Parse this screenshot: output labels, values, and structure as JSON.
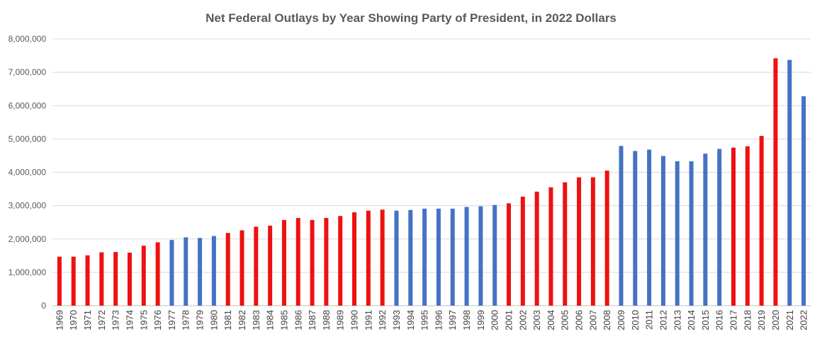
{
  "chart_data": {
    "type": "bar",
    "title": "Net Federal Outlays by Year Showing Party of President, in 2022 Dollars",
    "xlabel": "",
    "ylabel": "",
    "ylim": [
      0,
      8000000
    ],
    "yticks": [
      0,
      1000000,
      2000000,
      3000000,
      4000000,
      5000000,
      6000000,
      7000000,
      8000000
    ],
    "ytick_labels": [
      "0",
      "1,000,000",
      "2,000,000",
      "3,000,000",
      "4,000,000",
      "5,000,000",
      "6,000,000",
      "7,000,000",
      "8,000,000"
    ],
    "grid": true,
    "legend": "none",
    "colors": {
      "R": "#ee1111",
      "D": "#4472c4",
      "grid": "#d9d9d9",
      "axis": "#bfbfbf"
    },
    "categories": [
      "1969",
      "1970",
      "1971",
      "1972",
      "1973",
      "1974",
      "1975",
      "1976",
      "1977",
      "1978",
      "1979",
      "1980",
      "1981",
      "1982",
      "1983",
      "1984",
      "1985",
      "1986",
      "1987",
      "1988",
      "1989",
      "1990",
      "1991",
      "1992",
      "1993",
      "1994",
      "1995",
      "1996",
      "1997",
      "1998",
      "1999",
      "2000",
      "2001",
      "2002",
      "2003",
      "2004",
      "2005",
      "2006",
      "2007",
      "2008",
      "2009",
      "2010",
      "2011",
      "2012",
      "2013",
      "2014",
      "2015",
      "2016",
      "2017",
      "2018",
      "2019",
      "2020",
      "2021",
      "2022"
    ],
    "values": [
      1470000,
      1470000,
      1510000,
      1600000,
      1610000,
      1590000,
      1800000,
      1900000,
      1970000,
      2050000,
      2030000,
      2090000,
      2180000,
      2260000,
      2370000,
      2400000,
      2570000,
      2630000,
      2570000,
      2630000,
      2690000,
      2800000,
      2850000,
      2880000,
      2850000,
      2870000,
      2910000,
      2910000,
      2910000,
      2960000,
      2980000,
      3020000,
      3070000,
      3270000,
      3420000,
      3550000,
      3700000,
      3850000,
      3850000,
      4050000,
      4790000,
      4640000,
      4680000,
      4490000,
      4330000,
      4330000,
      4560000,
      4700000,
      4740000,
      4780000,
      5090000,
      7420000,
      7370000,
      6280000
    ],
    "party": [
      "R",
      "R",
      "R",
      "R",
      "R",
      "R",
      "R",
      "R",
      "D",
      "D",
      "D",
      "D",
      "R",
      "R",
      "R",
      "R",
      "R",
      "R",
      "R",
      "R",
      "R",
      "R",
      "R",
      "R",
      "D",
      "D",
      "D",
      "D",
      "D",
      "D",
      "D",
      "D",
      "R",
      "R",
      "R",
      "R",
      "R",
      "R",
      "R",
      "R",
      "D",
      "D",
      "D",
      "D",
      "D",
      "D",
      "D",
      "D",
      "R",
      "R",
      "R",
      "R",
      "D",
      "D"
    ]
  }
}
